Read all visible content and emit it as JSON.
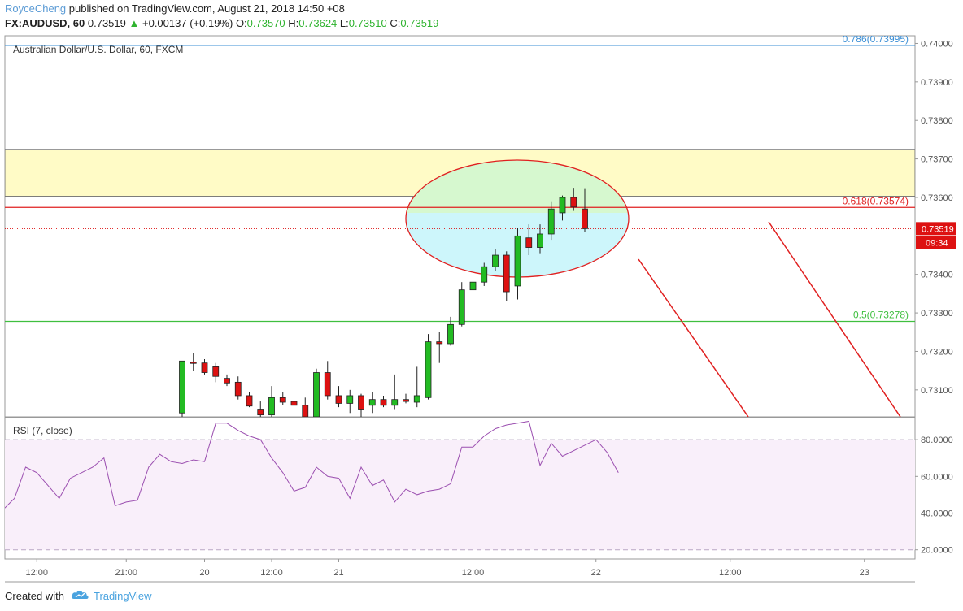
{
  "header": {
    "author": "RoyceCheng",
    "published": "published on TradingView.com, August 21, 2018 14:50 +08",
    "symbol": "FX:AUDUSD, 60",
    "last": "0.73519",
    "change_arrow": "▲",
    "change": "+0.00137 (+0.19%)",
    "o_label": "O:",
    "o_value": "0.73570",
    "h_label": "H:",
    "h_value": "0.73624",
    "l_label": "L:",
    "l_value": "0.73510",
    "c_label": "C:",
    "c_value": "0.73519"
  },
  "footer": {
    "created_with": "Created with",
    "brand": "TradingView",
    "logo_icon": "tradingview-cloud-icon"
  },
  "colors": {
    "bull": "#22bb22",
    "bear": "#dd1111",
    "fib_786": "#3b8fd6",
    "fib_618": "#e02020",
    "fib_50": "#3fbf3f",
    "zone_fill": "#fffbc6",
    "rsi_line": "#9b4fb0",
    "rsi_bg": "#f9effa",
    "ellipse_top": "#d6f8cf",
    "ellipse_bottom": "#cdf6fb",
    "ellipse_stroke": "#e02020",
    "arrow": "#e02020"
  },
  "chart_data": [
    {
      "type": "candlestick",
      "title": "Australian Dollar/U.S. Dollar, 60, FXCM",
      "ylim": [
        0.7303,
        0.7402
      ],
      "ytick_labels": [
        "0.74000",
        "0.73900",
        "0.73800",
        "0.73700",
        "0.73600",
        "0.73400",
        "0.73300",
        "0.73200",
        "0.73100"
      ],
      "ytick_values": [
        0.74,
        0.739,
        0.738,
        0.737,
        0.736,
        0.734,
        0.733,
        0.732,
        0.731
      ],
      "xtick_labels": [
        "12:00",
        "21:00",
        "20",
        "12:00",
        "21",
        "12:00",
        "22",
        "12:00",
        "23"
      ],
      "xtick_index": [
        -13,
        -5,
        2,
        8,
        14,
        26,
        37,
        49,
        61
      ],
      "last_price_label": "0.73519",
      "countdown_label": "09:34",
      "last_price": 0.73519,
      "candles": [
        {
          "i": 0,
          "o": 0.7304,
          "h": 0.73175,
          "l": 0.7303,
          "c": 0.73175
        },
        {
          "i": 1,
          "o": 0.73172,
          "h": 0.73195,
          "l": 0.7315,
          "c": 0.7317
        },
        {
          "i": 2,
          "o": 0.7317,
          "h": 0.7318,
          "l": 0.7314,
          "c": 0.73145
        },
        {
          "i": 3,
          "o": 0.7316,
          "h": 0.7317,
          "l": 0.7312,
          "c": 0.73135
        },
        {
          "i": 4,
          "o": 0.7313,
          "h": 0.7314,
          "l": 0.7311,
          "c": 0.73118
        },
        {
          "i": 5,
          "o": 0.7312,
          "h": 0.73135,
          "l": 0.73075,
          "c": 0.73085
        },
        {
          "i": 6,
          "o": 0.73085,
          "h": 0.73095,
          "l": 0.73055,
          "c": 0.73058
        },
        {
          "i": 7,
          "o": 0.7305,
          "h": 0.7307,
          "l": 0.7303,
          "c": 0.73035
        },
        {
          "i": 8,
          "o": 0.73035,
          "h": 0.7311,
          "l": 0.7303,
          "c": 0.7308
        },
        {
          "i": 9,
          "o": 0.7308,
          "h": 0.73095,
          "l": 0.7306,
          "c": 0.73068
        },
        {
          "i": 10,
          "o": 0.7307,
          "h": 0.73095,
          "l": 0.7305,
          "c": 0.7306
        },
        {
          "i": 11,
          "o": 0.7306,
          "h": 0.7308,
          "l": 0.73025,
          "c": 0.7303
        },
        {
          "i": 12,
          "o": 0.7303,
          "h": 0.73155,
          "l": 0.7302,
          "c": 0.73145
        },
        {
          "i": 13,
          "o": 0.73145,
          "h": 0.73175,
          "l": 0.73075,
          "c": 0.73085
        },
        {
          "i": 14,
          "o": 0.73085,
          "h": 0.7311,
          "l": 0.73055,
          "c": 0.73065
        },
        {
          "i": 15,
          "o": 0.73065,
          "h": 0.731,
          "l": 0.7304,
          "c": 0.73085
        },
        {
          "i": 16,
          "o": 0.73085,
          "h": 0.7309,
          "l": 0.7303,
          "c": 0.7305
        },
        {
          "i": 17,
          "o": 0.7306,
          "h": 0.73095,
          "l": 0.7304,
          "c": 0.73075
        },
        {
          "i": 18,
          "o": 0.73075,
          "h": 0.73085,
          "l": 0.73055,
          "c": 0.7306
        },
        {
          "i": 19,
          "o": 0.7306,
          "h": 0.7314,
          "l": 0.7305,
          "c": 0.73075
        },
        {
          "i": 20,
          "o": 0.73075,
          "h": 0.7309,
          "l": 0.73065,
          "c": 0.7307
        },
        {
          "i": 21,
          "o": 0.73068,
          "h": 0.7316,
          "l": 0.73055,
          "c": 0.73085
        },
        {
          "i": 22,
          "o": 0.7308,
          "h": 0.73245,
          "l": 0.73075,
          "c": 0.73225
        },
        {
          "i": 23,
          "o": 0.73225,
          "h": 0.7325,
          "l": 0.7317,
          "c": 0.7322
        },
        {
          "i": 24,
          "o": 0.7322,
          "h": 0.7329,
          "l": 0.73215,
          "c": 0.7327
        },
        {
          "i": 25,
          "o": 0.7327,
          "h": 0.7338,
          "l": 0.73265,
          "c": 0.7336
        },
        {
          "i": 26,
          "o": 0.7336,
          "h": 0.7339,
          "l": 0.7333,
          "c": 0.7338
        },
        {
          "i": 27,
          "o": 0.7338,
          "h": 0.7343,
          "l": 0.7337,
          "c": 0.7342
        },
        {
          "i": 28,
          "o": 0.7342,
          "h": 0.73465,
          "l": 0.7341,
          "c": 0.7345
        },
        {
          "i": 29,
          "o": 0.7345,
          "h": 0.7346,
          "l": 0.7333,
          "c": 0.73355
        },
        {
          "i": 30,
          "o": 0.7337,
          "h": 0.7352,
          "l": 0.73335,
          "c": 0.735
        },
        {
          "i": 31,
          "o": 0.73495,
          "h": 0.7353,
          "l": 0.7345,
          "c": 0.7347
        },
        {
          "i": 32,
          "o": 0.7347,
          "h": 0.7353,
          "l": 0.73455,
          "c": 0.73505
        },
        {
          "i": 33,
          "o": 0.73505,
          "h": 0.7359,
          "l": 0.7349,
          "c": 0.7357
        },
        {
          "i": 34,
          "o": 0.7356,
          "h": 0.73605,
          "l": 0.7354,
          "c": 0.736
        },
        {
          "i": 35,
          "o": 0.736,
          "h": 0.73625,
          "l": 0.73565,
          "c": 0.73575
        },
        {
          "i": 36,
          "o": 0.7357,
          "h": 0.73624,
          "l": 0.7351,
          "c": 0.73519
        }
      ],
      "fib_levels": [
        {
          "label": "0.786(0.73995)",
          "value": 0.73995
        },
        {
          "label": "0.618(0.73574)",
          "value": 0.73574
        },
        {
          "label": "0.5(0.73278)",
          "value": 0.73278
        }
      ],
      "zone": {
        "top": 0.73725,
        "bottom": 0.73603
      }
    },
    {
      "type": "line",
      "title": "RSI (7, close)",
      "ylim": [
        15,
        92
      ],
      "ytick_labels": [
        "80.0000",
        "60.0000",
        "40.0000",
        "20.0000"
      ],
      "ytick_values": [
        80,
        60,
        40,
        20
      ],
      "bands": [
        80,
        20
      ],
      "series": [
        {
          "start_index": -16,
          "values": [
            42,
            48,
            65,
            62,
            55,
            48,
            59,
            62,
            65,
            70,
            44,
            46,
            47,
            65,
            72,
            68,
            67,
            69,
            68,
            89,
            89,
            85,
            82,
            80,
            70,
            62,
            52,
            54,
            65,
            60,
            59,
            48,
            65,
            55,
            58,
            46,
            53,
            50,
            52,
            53,
            56,
            76,
            76,
            82,
            86,
            88,
            89,
            90,
            66,
            78,
            71,
            74,
            77,
            80,
            73,
            62
          ]
        }
      ]
    }
  ]
}
